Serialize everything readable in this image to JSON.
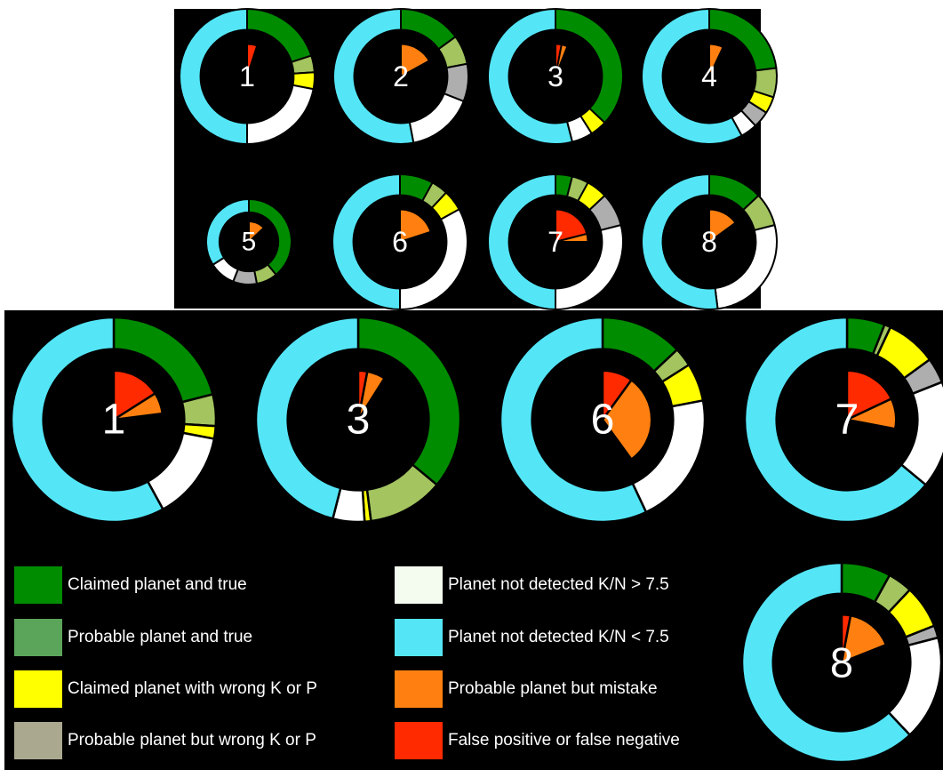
{
  "category_colors": {
    "claimed_true": "#008c00",
    "probable_true": "#a3c45f",
    "claimed_wrong": "#ffff00",
    "probable_wrong": "#aeaeae",
    "notdet_high": "#ffffff",
    "notdet_low": "#54e6f7",
    "probable_mistake": "#ff8010",
    "false_pos_neg": "#ff2a00"
  },
  "legend": [
    {
      "label": "Claimed planet and true",
      "color": "#008c00"
    },
    {
      "label": "Probable planet and true",
      "color": "#5aa55a"
    },
    {
      "label": "Claimed planet with wrong K or P",
      "color": "#ffff00"
    },
    {
      "label": "Probable planet but wrong K or P",
      "color": "#aaa990"
    },
    {
      "label": "Planet not detected K/N > 7.5",
      "color": "#f4fbef"
    },
    {
      "label": "Planet not detected K/N < 7.5",
      "color": "#54e6f7"
    },
    {
      "label": "Probable planet but mistake",
      "color": "#ff8010"
    },
    {
      "label": "False positive or false negative",
      "color": "#ff2a00"
    }
  ],
  "chart_data": [
    {
      "type": "pie",
      "label": "1",
      "outer": [
        {
          "category": "claimed_true",
          "value": 20
        },
        {
          "category": "probable_true",
          "value": 4
        },
        {
          "category": "claimed_wrong",
          "value": 4
        },
        {
          "category": "notdet_high",
          "value": 22
        },
        {
          "category": "notdet_low",
          "value": 50
        }
      ],
      "inner": [
        {
          "category": "false_pos_neg",
          "value": 5
        }
      ]
    },
    {
      "type": "pie",
      "label": "2",
      "outer": [
        {
          "category": "claimed_true",
          "value": 15
        },
        {
          "category": "probable_true",
          "value": 7
        },
        {
          "category": "probable_wrong",
          "value": 9
        },
        {
          "category": "notdet_high",
          "value": 16
        },
        {
          "category": "notdet_low",
          "value": 53
        }
      ],
      "inner": [
        {
          "category": "probable_mistake",
          "value": 17
        }
      ]
    },
    {
      "type": "pie",
      "label": "3",
      "outer": [
        {
          "category": "claimed_true",
          "value": 37
        },
        {
          "category": "claimed_wrong",
          "value": 4
        },
        {
          "category": "notdet_high",
          "value": 5
        },
        {
          "category": "notdet_low",
          "value": 54
        }
      ],
      "inner": [
        {
          "category": "false_pos_neg",
          "value": 3
        },
        {
          "category": "probable_mistake",
          "value": 3
        }
      ]
    },
    {
      "type": "pie",
      "label": "4",
      "outer": [
        {
          "category": "claimed_true",
          "value": 23
        },
        {
          "category": "probable_true",
          "value": 7
        },
        {
          "category": "claimed_wrong",
          "value": 4
        },
        {
          "category": "probable_wrong",
          "value": 4
        },
        {
          "category": "notdet_high",
          "value": 4
        },
        {
          "category": "notdet_low",
          "value": 58
        }
      ],
      "inner": [
        {
          "category": "probable_mistake",
          "value": 7
        }
      ]
    },
    {
      "type": "pie",
      "label": "5",
      "outer": [
        {
          "category": "claimed_true",
          "value": 39
        },
        {
          "category": "probable_true",
          "value": 8
        },
        {
          "category": "probable_wrong",
          "value": 9
        },
        {
          "category": "notdet_high",
          "value": 10
        },
        {
          "category": "notdet_low",
          "value": 34
        }
      ],
      "inner": [
        {
          "category": "probable_mistake",
          "value": 13
        }
      ]
    },
    {
      "type": "pie",
      "label": "6",
      "outer": [
        {
          "category": "claimed_true",
          "value": 8
        },
        {
          "category": "probable_true",
          "value": 4
        },
        {
          "category": "claimed_wrong",
          "value": 5
        },
        {
          "category": "notdet_high",
          "value": 33
        },
        {
          "category": "notdet_low",
          "value": 50
        }
      ],
      "inner": [
        {
          "category": "probable_mistake",
          "value": 20
        }
      ]
    },
    {
      "type": "pie",
      "label": "7",
      "outer": [
        {
          "category": "claimed_true",
          "value": 4
        },
        {
          "category": "probable_true",
          "value": 4
        },
        {
          "category": "claimed_wrong",
          "value": 5
        },
        {
          "category": "probable_wrong",
          "value": 8
        },
        {
          "category": "notdet_high",
          "value": 29
        },
        {
          "category": "notdet_low",
          "value": 50
        }
      ],
      "inner": [
        {
          "category": "false_pos_neg",
          "value": 21
        },
        {
          "category": "probable_mistake",
          "value": 4
        }
      ]
    },
    {
      "type": "pie",
      "label": "8",
      "outer": [
        {
          "category": "claimed_true",
          "value": 13
        },
        {
          "category": "probable_true",
          "value": 8
        },
        {
          "category": "notdet_high",
          "value": 27
        },
        {
          "category": "notdet_low",
          "value": 52
        }
      ],
      "inner": [
        {
          "category": "probable_mistake",
          "value": 15
        }
      ]
    },
    {
      "type": "pie",
      "label": "1",
      "outer": [
        {
          "category": "claimed_true",
          "value": 21
        },
        {
          "category": "probable_true",
          "value": 5
        },
        {
          "category": "claimed_wrong",
          "value": 2
        },
        {
          "category": "notdet_high",
          "value": 14
        },
        {
          "category": "notdet_low",
          "value": 58
        }
      ],
      "inner": [
        {
          "category": "false_pos_neg",
          "value": 16
        },
        {
          "category": "probable_mistake",
          "value": 7
        }
      ]
    },
    {
      "type": "pie",
      "label": "3",
      "outer": [
        {
          "category": "claimed_true",
          "value": 36
        },
        {
          "category": "probable_true",
          "value": 12
        },
        {
          "category": "claimed_wrong",
          "value": 1
        },
        {
          "category": "notdet_high",
          "value": 5
        },
        {
          "category": "notdet_low",
          "value": 46
        }
      ],
      "inner": [
        {
          "category": "false_pos_neg",
          "value": 3
        },
        {
          "category": "probable_mistake",
          "value": 6
        }
      ]
    },
    {
      "type": "pie",
      "label": "6",
      "outer": [
        {
          "category": "claimed_true",
          "value": 13
        },
        {
          "category": "probable_true",
          "value": 3
        },
        {
          "category": "claimed_wrong",
          "value": 6
        },
        {
          "category": "notdet_high",
          "value": 21
        },
        {
          "category": "notdet_low",
          "value": 57
        }
      ],
      "inner": [
        {
          "category": "false_pos_neg",
          "value": 10
        },
        {
          "category": "probable_mistake",
          "value": 30
        }
      ]
    },
    {
      "type": "pie",
      "label": "7",
      "outer": [
        {
          "category": "claimed_true",
          "value": 6
        },
        {
          "category": "probable_true",
          "value": 1
        },
        {
          "category": "claimed_wrong",
          "value": 8
        },
        {
          "category": "probable_wrong",
          "value": 4
        },
        {
          "category": "notdet_high",
          "value": 17
        },
        {
          "category": "notdet_low",
          "value": 64
        }
      ],
      "inner": [
        {
          "category": "false_pos_neg",
          "value": 18
        },
        {
          "category": "probable_mistake",
          "value": 10
        }
      ]
    },
    {
      "type": "pie",
      "label": "8",
      "outer": [
        {
          "category": "claimed_true",
          "value": 8
        },
        {
          "category": "probable_true",
          "value": 4
        },
        {
          "category": "claimed_wrong",
          "value": 7
        },
        {
          "category": "probable_wrong",
          "value": 2
        },
        {
          "category": "notdet_high",
          "value": 17
        },
        {
          "category": "notdet_low",
          "value": 62
        }
      ],
      "inner": [
        {
          "category": "false_pos_neg",
          "value": 3
        },
        {
          "category": "probable_mistake",
          "value": 16
        }
      ]
    }
  ]
}
